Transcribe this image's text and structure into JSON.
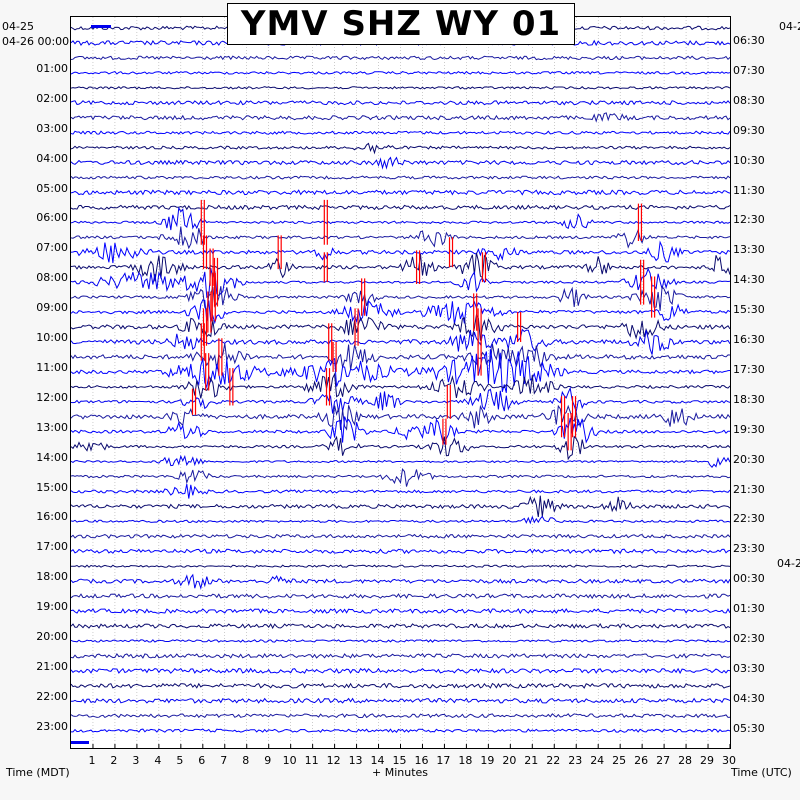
{
  "chart_data": {
    "type": "line",
    "title": "YMV SHZ WY 01",
    "xlabel": "+ Minutes",
    "left_axis_label": "Time (MDT)",
    "right_axis_label": "Time (UTC)",
    "xlim": [
      0,
      30
    ],
    "x_ticks": [
      "1",
      "2",
      "3",
      "4",
      "5",
      "6",
      "7",
      "8",
      "9",
      "10",
      "11",
      "12",
      "13",
      "14",
      "15",
      "16",
      "17",
      "18",
      "19",
      "20",
      "21",
      "22",
      "23",
      "24",
      "25",
      "26",
      "27",
      "28",
      "29",
      "30"
    ],
    "row_interval_minutes": 30,
    "row_count": 48,
    "left_corner_labels": [
      "04-25",
      "04-26 00:00"
    ],
    "left_hour_labels": [
      "01:00",
      "02:00",
      "03:00",
      "04:00",
      "05:00",
      "06:00",
      "07:00",
      "08:00",
      "09:00",
      "10:00",
      "11:00",
      "12:00",
      "13:00",
      "14:00",
      "15:00",
      "16:00",
      "17:00",
      "18:00",
      "19:00",
      "20:00",
      "21:00",
      "22:00",
      "23:00"
    ],
    "right_corner_label": "04-2",
    "right_hour_labels": [
      "06:30",
      "07:30",
      "08:30",
      "09:30",
      "10:30",
      "11:30",
      "12:30",
      "13:30",
      "14:30",
      "15:30",
      "16:30",
      "17:30",
      "18:30",
      "19:30",
      "20:30",
      "21:30",
      "22:30",
      "23:30",
      "00:30",
      "01:30",
      "02:30",
      "03:30",
      "04:30",
      "05:30"
    ],
    "right_date_label": "04-2",
    "trace_colors": [
      "#0a0a6e",
      "#0000ee",
      "#1a1aa0",
      "#0000ff"
    ],
    "clip_color": "#ff0000",
    "grid": true
  }
}
